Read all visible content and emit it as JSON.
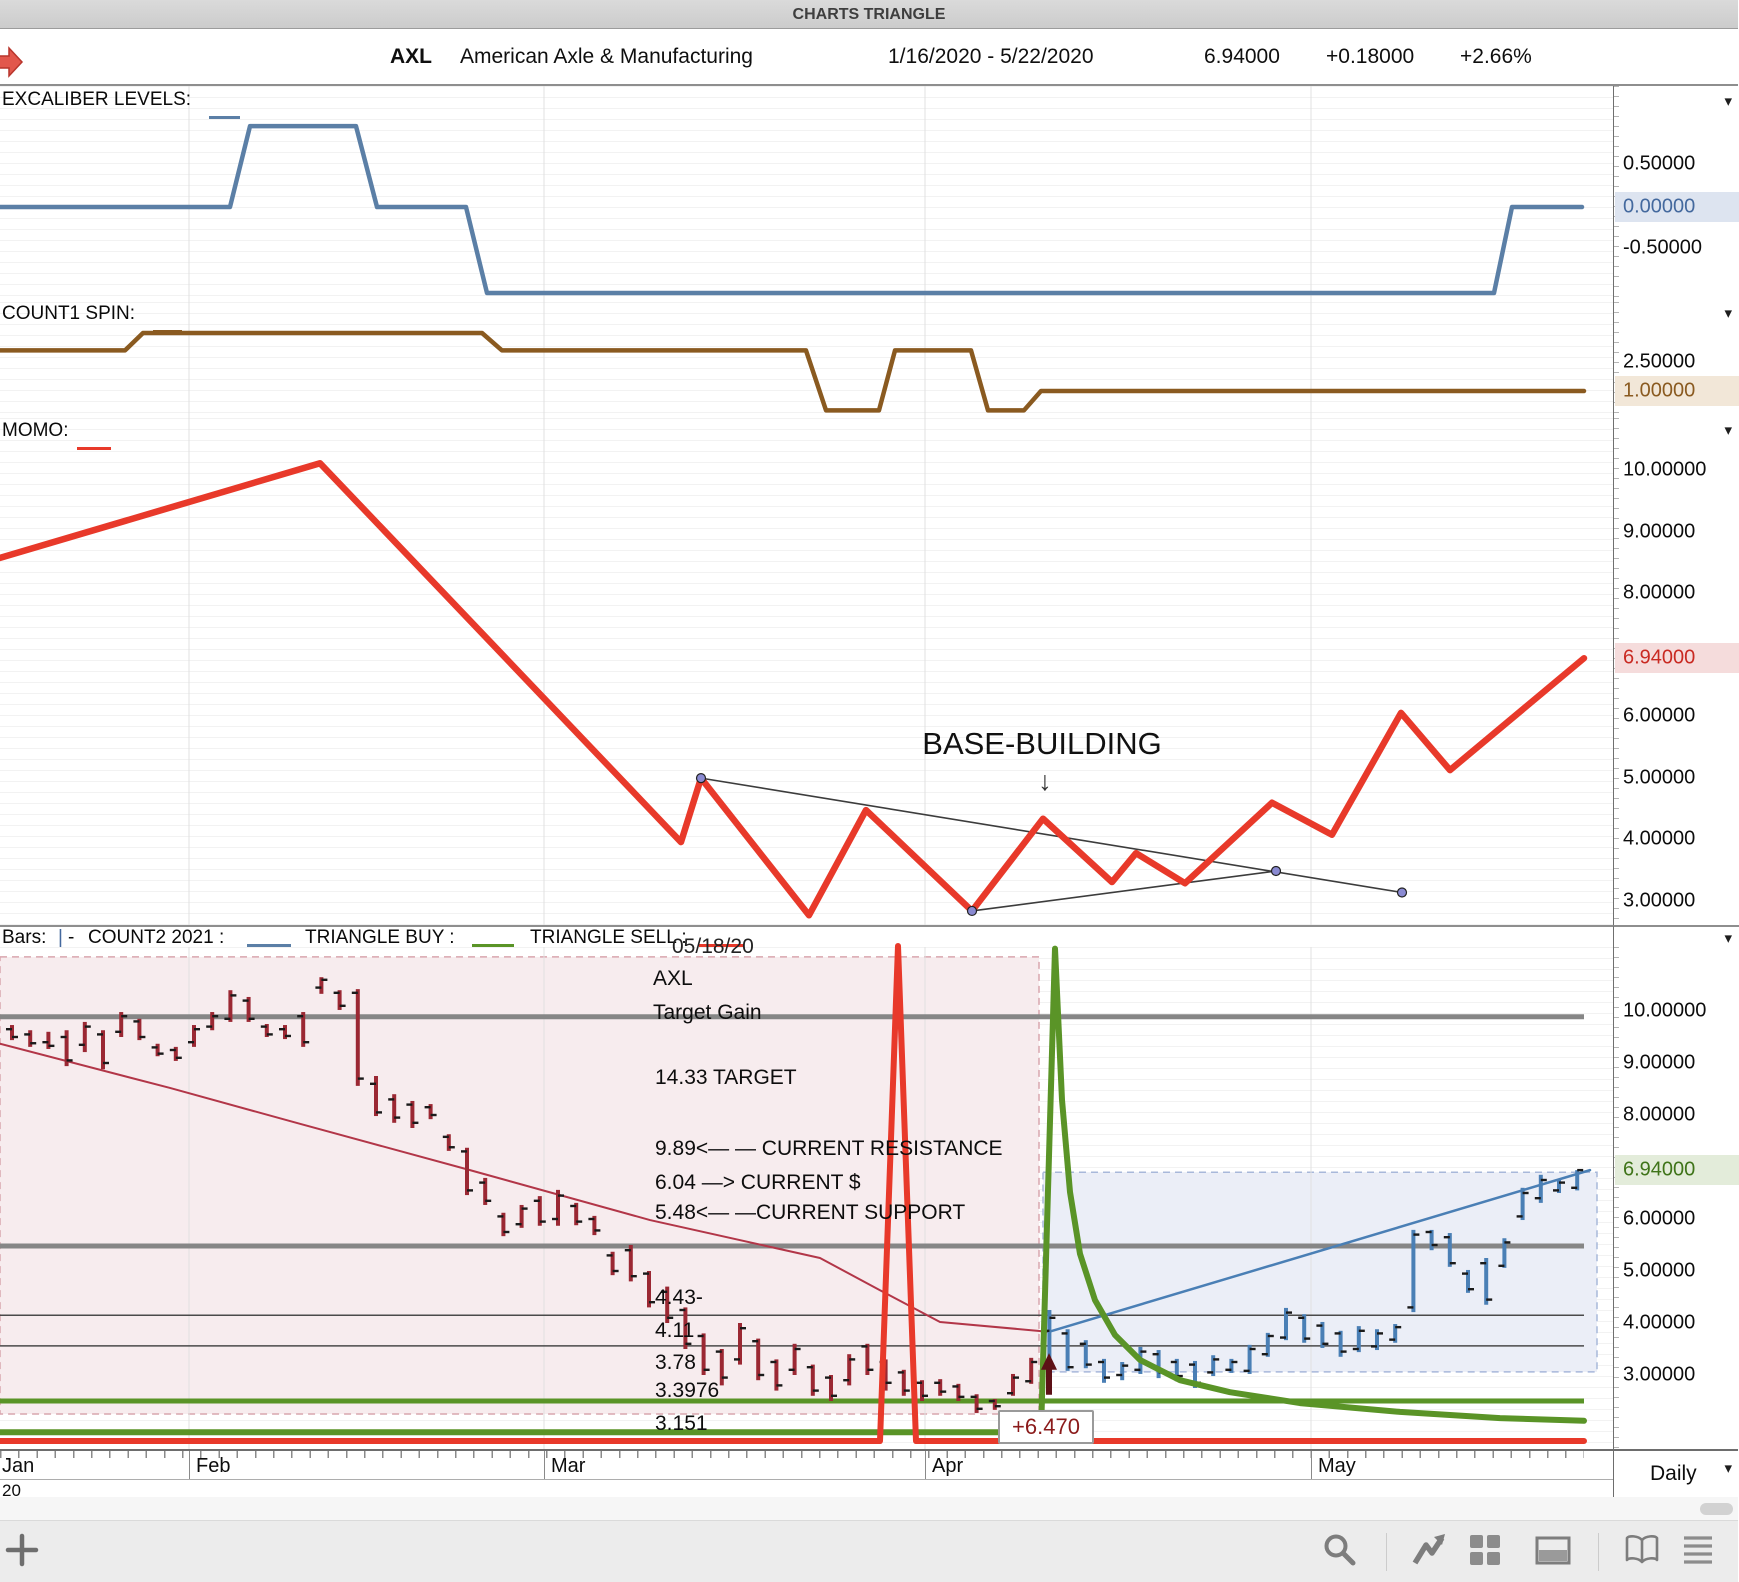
{
  "window": {
    "title": "CHARTS TRIANGLE"
  },
  "header": {
    "symbol": "AXL",
    "company": "American Axle & Manufacturing",
    "date_range": "1/16/2020 - 5/22/2020",
    "last": "6.94000",
    "change": "+0.18000",
    "change_pct": "+2.66%"
  },
  "panels": {
    "excaliber": {
      "label": "EXCALIBER LEVELS:",
      "axis": [
        "0.50000",
        "0.00000",
        "-0.50000"
      ],
      "highlighted": "0.00000"
    },
    "count1": {
      "label": "COUNT1 SPIN:",
      "axis": [
        "2.50000",
        "1.00000"
      ],
      "highlighted": "1.00000"
    },
    "momo": {
      "label": "MOMO:",
      "axis": [
        "10.00000",
        "9.00000",
        "8.00000",
        "6.94000",
        "6.00000",
        "5.00000",
        "4.00000",
        "3.00000"
      ],
      "highlighted": "6.94000",
      "annotation": "BASE-BUILDING",
      "annotation_arrow": "↓"
    },
    "price": {
      "axis": [
        "10.00000",
        "9.00000",
        "8.00000",
        "6.94000",
        "6.00000",
        "5.00000",
        "4.00000",
        "3.00000"
      ],
      "highlighted": "6.94000"
    }
  },
  "legend": {
    "bars": "Bars:",
    "bars_mark": "|",
    "bars_dash": "-",
    "count2": "COUNT2 2021 :",
    "buy": "TRIANGLE BUY :",
    "sell": "TRIANGLE SELL :"
  },
  "price_annotations": {
    "date_partial": "05/18/20",
    "symbol": "AXL",
    "target_gain_label": "Target Gain",
    "target": "14.33 TARGET",
    "resistance": "9.89<— —  CURRENT RESISTANCE",
    "current": "6.04  —> CURRENT $",
    "support": "5.48<— —CURRENT SUPPORT",
    "levels": [
      "4.43-",
      "4.11",
      "3.78",
      "3.3976",
      "3.151"
    ],
    "buy_gain": "+6.470"
  },
  "xaxis": {
    "months": [
      "Jan",
      "Feb",
      "Mar",
      "Apr",
      "May"
    ],
    "year": "20",
    "interval": "Daily"
  },
  "toolbar": {
    "icons": [
      "add",
      "search",
      "trend-line",
      "grid",
      "panel-layout",
      "book",
      "menu"
    ]
  },
  "colors": {
    "excaliber_line": "#5b7fa6",
    "count1_line": "#8a5a20",
    "momo_line": "#e8392a",
    "bars_down": "#9b2833",
    "bars_up": "#4a7fb5",
    "ma_line": "#b23648",
    "trend_blue": "#4a7fb5",
    "buy_line": "#5a9427",
    "sell_line": "#e8392a",
    "level_gray": "#868686",
    "region_pink": "#f7ecee",
    "region_pink_border": "#d9a6ae",
    "region_blue": "#ebeef7",
    "region_blue_border": "#a8b8da"
  },
  "chart_data": [
    {
      "type": "line",
      "title": "EXCALIBER LEVELS",
      "yticks": [
        0.5,
        0.0,
        -0.5
      ],
      "series": [
        {
          "name": "excaliber",
          "points": [
            [
              0,
              0
            ],
            [
              230,
              0
            ],
            [
              250,
              0.94
            ],
            [
              356,
              0.94
            ],
            [
              377,
              0
            ],
            [
              466,
              0
            ],
            [
              487,
              -1
            ],
            [
              1494,
              -1
            ],
            [
              1512,
              0
            ],
            [
              1582,
              0
            ]
          ]
        }
      ]
    },
    {
      "type": "line",
      "title": "COUNT1 SPIN",
      "yticks": [
        2.5,
        1.0
      ],
      "series": [
        {
          "name": "count1",
          "points": [
            [
              0,
              3.1
            ],
            [
              125,
              3.1
            ],
            [
              143,
              4
            ],
            [
              482,
              4
            ],
            [
              502,
              3.1
            ],
            [
              806,
              3.1
            ],
            [
              826,
              0
            ],
            [
              879,
              0
            ],
            [
              895,
              3.1
            ],
            [
              971,
              3.1
            ],
            [
              988,
              0
            ],
            [
              1024,
              0
            ],
            [
              1041,
              1
            ],
            [
              1584,
              1
            ]
          ]
        }
      ]
    },
    {
      "type": "line",
      "title": "MOMO",
      "yticks": [
        10,
        9,
        8,
        6.94,
        6,
        5,
        4,
        3
      ],
      "series": [
        {
          "name": "momo",
          "points": [
            [
              0,
              8.57
            ],
            [
              320,
              10.11
            ],
            [
              681,
              3.95
            ],
            [
              701,
              4.99
            ],
            [
              809,
              2.76
            ],
            [
              866,
              4.47
            ],
            [
              972,
              2.83
            ],
            [
              1043,
              4.33
            ],
            [
              1112,
              3.3
            ],
            [
              1136,
              3.77
            ],
            [
              1185,
              3.28
            ],
            [
              1272,
              4.59
            ],
            [
              1332,
              4.07
            ],
            [
              1401,
              6.05
            ],
            [
              1450,
              5.12
            ],
            [
              1584,
              6.94
            ]
          ]
        }
      ],
      "trendlines": [
        [
          [
            701,
            4.99
          ],
          [
            1402,
            3.13
          ]
        ],
        [
          [
            972,
            2.83
          ],
          [
            1276,
            3.48
          ]
        ]
      ],
      "dots": [
        [
          701,
          4.99
        ],
        [
          972,
          2.83
        ],
        [
          1276,
          3.48
        ],
        [
          1402,
          3.13
        ]
      ]
    },
    {
      "type": "bar-ohlc",
      "title": "AXL Daily price",
      "yticks": [
        10,
        9,
        8,
        6.94,
        6,
        5,
        4,
        3
      ],
      "bars_down": [
        [
          9.73,
          9.44,
          9.65,
          9.5
        ],
        [
          9.63,
          9.31,
          9.55,
          9.38
        ],
        [
          9.6,
          9.27,
          9.4,
          9.33
        ],
        [
          9.63,
          8.94,
          9.5,
          9.05
        ],
        [
          9.79,
          9.21,
          9.35,
          9.7
        ],
        [
          9.63,
          8.88,
          9.55,
          9.0
        ],
        [
          9.98,
          9.5,
          9.6,
          9.9
        ],
        [
          9.85,
          9.44,
          9.8,
          9.5
        ],
        [
          9.37,
          9.13,
          9.3,
          9.18
        ],
        [
          9.31,
          9.04,
          9.25,
          9.1
        ],
        [
          9.73,
          9.31,
          9.4,
          9.65
        ],
        [
          9.98,
          9.63,
          9.7,
          9.9
        ],
        [
          10.4,
          9.79,
          9.85,
          10.3
        ],
        [
          10.27,
          9.79,
          10.2,
          9.85
        ],
        [
          9.75,
          9.5,
          9.7,
          9.55
        ],
        [
          9.73,
          9.46,
          9.65,
          9.52
        ],
        [
          9.98,
          9.31,
          9.9,
          9.4
        ],
        [
          10.65,
          10.33,
          10.45,
          10.6
        ],
        [
          10.4,
          10.02,
          10.35,
          10.1
        ],
        [
          10.42,
          8.56,
          10.35,
          8.7
        ],
        [
          8.75,
          7.98,
          8.6,
          8.05
        ],
        [
          8.4,
          7.85,
          8.3,
          7.95
        ],
        [
          8.27,
          7.75,
          8.2,
          7.85
        ],
        [
          8.21,
          7.92,
          8.15,
          8.0
        ],
        [
          7.63,
          7.31,
          7.58,
          7.38
        ],
        [
          7.37,
          6.46,
          7.3,
          6.55
        ],
        [
          6.79,
          6.27,
          6.7,
          6.35
        ],
        [
          6.12,
          5.67,
          6.05,
          5.75
        ],
        [
          6.27,
          5.83,
          5.9,
          6.2
        ],
        [
          6.44,
          5.87,
          6.35,
          5.95
        ],
        [
          6.56,
          5.87,
          6.0,
          6.45
        ],
        [
          6.31,
          5.88,
          6.25,
          5.95
        ],
        [
          6.06,
          5.69,
          6.0,
          5.78
        ],
        [
          5.37,
          4.92,
          5.3,
          5.0
        ],
        [
          5.5,
          4.8,
          5.4,
          4.9
        ],
        [
          5.0,
          4.3,
          4.95,
          4.4
        ],
        [
          4.7,
          4.0,
          4.6,
          4.1
        ],
        [
          4.3,
          3.5,
          4.25,
          3.6
        ],
        [
          3.8,
          3.0,
          3.75,
          3.1
        ],
        [
          3.5,
          2.8,
          3.45,
          2.95
        ],
        [
          4.0,
          3.2,
          3.3,
          3.9
        ],
        [
          3.7,
          2.9,
          3.65,
          3.0
        ],
        [
          3.3,
          2.7,
          3.25,
          2.8
        ],
        [
          3.6,
          3.0,
          3.1,
          3.5
        ],
        [
          3.2,
          2.6,
          3.15,
          2.7
        ],
        [
          3.0,
          2.5,
          2.95,
          2.6
        ],
        [
          3.4,
          2.8,
          2.9,
          3.3
        ],
        [
          3.6,
          3.0,
          3.55,
          3.1
        ],
        [
          3.3,
          2.7,
          3.25,
          2.85
        ],
        [
          3.1,
          2.6,
          3.05,
          2.7
        ],
        [
          2.9,
          2.5,
          2.85,
          2.6
        ],
        [
          2.92,
          2.6,
          2.85,
          2.68
        ],
        [
          2.83,
          2.5,
          2.78,
          2.58
        ],
        [
          2.63,
          2.27,
          2.58,
          2.35
        ],
        [
          2.54,
          2.33,
          2.5,
          2.4
        ],
        [
          3.02,
          2.6,
          2.65,
          2.95
        ],
        [
          3.33,
          2.83,
          2.88,
          3.25
        ]
      ],
      "bars_up": [
        [
          4.25,
          3.3,
          3.85,
          4.1
        ],
        [
          3.88,
          3.08,
          3.8,
          3.15
        ],
        [
          3.67,
          3.13,
          3.6,
          3.2
        ],
        [
          3.31,
          2.85,
          3.25,
          2.95
        ],
        [
          3.25,
          2.9,
          3.0,
          3.18
        ],
        [
          3.54,
          3.02,
          3.1,
          3.45
        ],
        [
          3.48,
          2.94,
          3.4,
          3.05
        ],
        [
          3.31,
          2.88,
          3.25,
          2.98
        ],
        [
          3.27,
          2.75,
          3.2,
          2.85
        ],
        [
          3.38,
          2.98,
          3.05,
          3.3
        ],
        [
          3.31,
          3.04,
          3.1,
          3.25
        ],
        [
          3.58,
          3.02,
          3.08,
          3.5
        ],
        [
          3.81,
          3.35,
          3.4,
          3.75
        ],
        [
          4.29,
          3.67,
          3.72,
          4.2
        ],
        [
          4.17,
          3.62,
          4.1,
          3.7
        ],
        [
          4.02,
          3.52,
          3.95,
          3.6
        ],
        [
          3.85,
          3.35,
          3.8,
          3.45
        ],
        [
          3.94,
          3.44,
          3.5,
          3.85
        ],
        [
          3.88,
          3.48,
          3.55,
          3.8
        ],
        [
          3.98,
          3.62,
          3.68,
          3.92
        ],
        [
          5.79,
          4.21,
          4.3,
          5.7
        ],
        [
          5.79,
          5.4,
          5.75,
          5.5
        ],
        [
          5.73,
          5.08,
          5.65,
          5.15
        ],
        [
          5.02,
          4.58,
          4.95,
          4.65
        ],
        [
          5.25,
          4.35,
          5.15,
          4.45
        ],
        [
          5.63,
          5.06,
          5.1,
          5.55
        ],
        [
          6.6,
          5.98,
          6.05,
          6.5
        ],
        [
          6.85,
          6.31,
          6.4,
          6.75
        ],
        [
          6.75,
          6.5,
          6.55,
          6.7
        ],
        [
          6.94,
          6.55,
          6.6,
          6.94
        ]
      ],
      "ma": [
        [
          0,
          9.37
        ],
        [
          170,
          8.52
        ],
        [
          300,
          7.83
        ],
        [
          470,
          6.94
        ],
        [
          650,
          5.98
        ],
        [
          820,
          5.25
        ],
        [
          880,
          4.63
        ],
        [
          940,
          4.02
        ],
        [
          1049,
          3.83
        ]
      ],
      "trend_up": [
        [
          1049,
          3.83
        ],
        [
          1590,
          6.94
        ]
      ],
      "levels": [
        {
          "v": 9.89,
          "w": 5,
          "c": "#868686"
        },
        {
          "v": 5.48,
          "w": 5,
          "c": "#868686"
        },
        {
          "v": 4.15,
          "w": 1.5,
          "c": "#4a4a4a"
        },
        {
          "v": 3.56,
          "w": 1.5,
          "c": "#4a4a4a"
        },
        {
          "v": 2.5,
          "w": 5,
          "c": "#5a9427"
        }
      ],
      "buy_curve": [
        [
          0,
          1.9
        ],
        [
          1041,
          1.9
        ],
        [
          1055,
          11.2
        ],
        [
          1062,
          8.29
        ],
        [
          1070,
          6.52
        ],
        [
          1080,
          5.33
        ],
        [
          1095,
          4.44
        ],
        [
          1115,
          3.77
        ],
        [
          1140,
          3.29
        ],
        [
          1180,
          2.9
        ],
        [
          1230,
          2.67
        ],
        [
          1300,
          2.46
        ],
        [
          1400,
          2.29
        ],
        [
          1500,
          2.17
        ],
        [
          1584,
          2.12
        ]
      ],
      "sell_curve": [
        [
          0,
          1.73
        ],
        [
          880,
          1.73
        ],
        [
          898,
          11.25
        ],
        [
          916,
          1.73
        ],
        [
          1584,
          1.73
        ]
      ],
      "region_pink": {
        "x": [
          0,
          1039
        ],
        "v": [
          11.04,
          2.25
        ]
      },
      "region_blue": {
        "x": [
          1043,
          1597
        ],
        "v": [
          6.9,
          3.06
        ]
      },
      "buy_arrow_x": 1049
    }
  ]
}
